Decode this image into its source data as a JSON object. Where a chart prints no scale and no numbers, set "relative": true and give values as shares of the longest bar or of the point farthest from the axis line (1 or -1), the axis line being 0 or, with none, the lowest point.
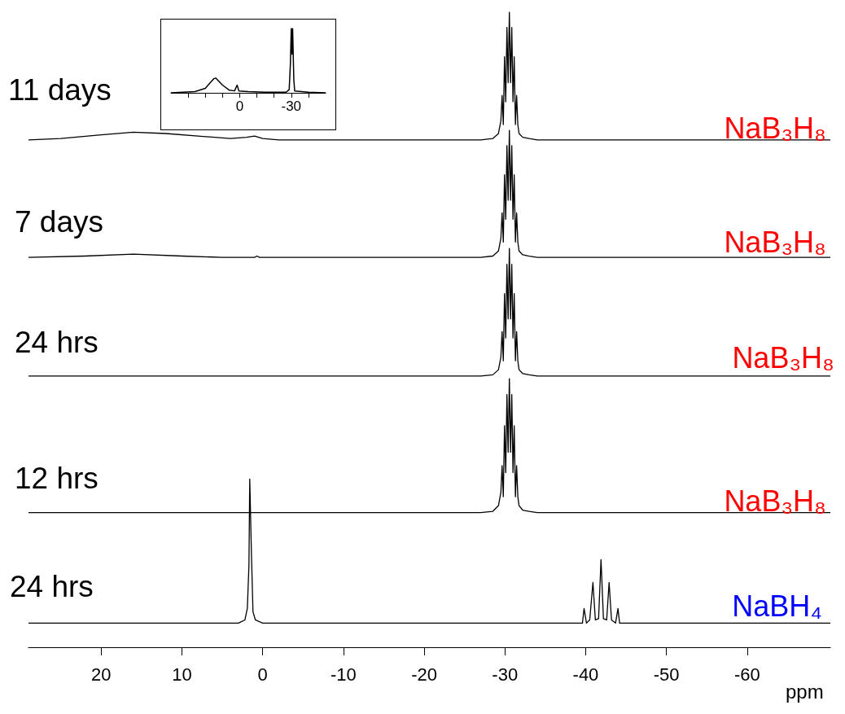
{
  "chart_data": [
    {
      "type": "line",
      "relative": true,
      "marker": "none",
      "tick_labels": "x",
      "xlim": [
        40,
        -50
      ],
      "xticks": [
        {
          "value": 30,
          "label": null
        },
        {
          "value": 20,
          "label": null
        },
        {
          "value": 10,
          "label": null
        },
        0,
        {
          "value": -10,
          "label": null
        },
        {
          "value": -20,
          "label": null
        },
        -30,
        {
          "value": -40,
          "label": null
        }
      ],
      "series": [
        {
          "color": "#000000",
          "x": [
            40,
            33,
            26,
            20,
            15,
            14,
            10,
            6,
            3,
            1.5,
            0.5,
            -5,
            -15,
            -27,
            -28.8,
            -29.5,
            -30.0,
            -30.4,
            -30.8,
            -31.5,
            -32,
            -40,
            -50
          ],
          "values": [
            0,
            0.01,
            0.02,
            0.07,
            0.22,
            0.23,
            0.12,
            0.04,
            0.03,
            0.12,
            0.03,
            0.02,
            0.01,
            0.01,
            0.05,
            0.45,
            1,
            0.6,
            1,
            0.2,
            0.03,
            0.01,
            0
          ]
        }
      ]
    },
    {
      "type": "line",
      "relative": true,
      "marker": "none",
      "tick_labels": "x",
      "xlim": [
        29,
        -70.3
      ],
      "xticks": [
        20,
        10,
        0,
        -10,
        -20,
        -30,
        -40,
        -50,
        -60
      ],
      "xlabel": "ppm",
      "annotations": [
        "NaB₃H₈",
        "NaB₃H₈",
        "NaB₃H₈",
        "NaB₃H₈",
        "NaBH₄"
      ],
      "series": [
        {
          "name": "11 days",
          "color": "#000000",
          "x": [
            29,
            25,
            20,
            16,
            12,
            8,
            4,
            2,
            1,
            0.5,
            0,
            -2,
            -10,
            -27,
            -28.5,
            -29.2,
            -29.5,
            -29.65,
            -29.8,
            -29.95,
            -30.1,
            -30.25,
            -30.4,
            -30.55,
            -30.7,
            -30.85,
            -31.0,
            -31.15,
            -31.3,
            -31.45,
            -31.6,
            -31.75,
            -32.2,
            -33,
            -34,
            -70.3
          ],
          "values": [
            0.799,
            0.801,
            0.807,
            0.811,
            0.809,
            0.805,
            0.801,
            0.803,
            0.805,
            0.803,
            0.801,
            0.799,
            0.799,
            0.799,
            0.801,
            0.809,
            0.829,
            0.869,
            0.823,
            0.93,
            0.859,
            0.976,
            0.889,
            1,
            0.889,
            0.976,
            0.859,
            0.93,
            0.823,
            0.869,
            0.823,
            0.809,
            0.803,
            0.801,
            0.799,
            0.799
          ]
        },
        {
          "name": "7 days",
          "color": "#000000",
          "x": [
            29,
            22,
            16,
            10,
            5,
            1,
            0.7,
            0.4,
            -10,
            -27,
            -28.5,
            -29.2,
            -29.5,
            -29.65,
            -29.8,
            -29.95,
            -30.1,
            -30.25,
            -30.4,
            -30.55,
            -30.7,
            -30.85,
            -31.0,
            -31.15,
            -31.3,
            -31.45,
            -31.6,
            -31.75,
            -32.2,
            -33,
            -34,
            -70.3
          ],
          "values": [
            0.614,
            0.616,
            0.619,
            0.616,
            0.614,
            0.614,
            0.616,
            0.614,
            0.614,
            0.614,
            0.616,
            0.624,
            0.644,
            0.684,
            0.638,
            0.744,
            0.674,
            0.79,
            0.704,
            0.814,
            0.704,
            0.79,
            0.674,
            0.744,
            0.638,
            0.684,
            0.638,
            0.624,
            0.618,
            0.616,
            0.614,
            0.614
          ]
        },
        {
          "name": "24 hrs",
          "color": "#000000",
          "x": [
            29,
            -10,
            -27,
            -28.5,
            -29.2,
            -29.5,
            -29.65,
            -29.8,
            -29.95,
            -30.1,
            -30.25,
            -30.4,
            -30.55,
            -30.7,
            -30.85,
            -31.0,
            -31.15,
            -31.3,
            -31.45,
            -31.6,
            -31.75,
            -32.2,
            -33,
            -34,
            -70.3
          ],
          "values": [
            0.427,
            0.427,
            0.427,
            0.429,
            0.437,
            0.457,
            0.497,
            0.451,
            0.557,
            0.487,
            0.603,
            0.517,
            0.628,
            0.517,
            0.603,
            0.487,
            0.557,
            0.451,
            0.497,
            0.451,
            0.437,
            0.431,
            0.429,
            0.427,
            0.427
          ]
        },
        {
          "name": "12 hrs",
          "color": "#000000",
          "x": [
            29,
            -10,
            -27,
            -28.5,
            -29.2,
            -29.5,
            -29.65,
            -29.8,
            -29.95,
            -30.1,
            -30.25,
            -30.4,
            -30.55,
            -30.7,
            -30.85,
            -31.0,
            -31.15,
            -31.3,
            -31.45,
            -31.6,
            -31.75,
            -32.2,
            -33,
            -34,
            -70.3
          ],
          "values": [
            0.212,
            0.212,
            0.212,
            0.214,
            0.223,
            0.244,
            0.286,
            0.237,
            0.349,
            0.275,
            0.398,
            0.307,
            0.423,
            0.307,
            0.398,
            0.275,
            0.349,
            0.237,
            0.286,
            0.237,
            0.223,
            0.216,
            0.214,
            0.212,
            0.212
          ]
        },
        {
          "name": "24 hrs",
          "color": "#000000",
          "x": [
            29,
            3,
            2.2,
            1.9,
            1.7,
            1.6,
            1.4,
            1.2,
            0.9,
            0,
            -38,
            -39.6,
            -39.8,
            -40.1,
            -40.5,
            -40.9,
            -41.2,
            -41.6,
            -41.9,
            -42.2,
            -42.6,
            -42.9,
            -43.2,
            -43.7,
            -44.0,
            -44.2,
            -70.3
          ],
          "values": [
            0.038,
            0.038,
            0.043,
            0.061,
            0.129,
            0.265,
            0.152,
            0.056,
            0.043,
            0.038,
            0.038,
            0.038,
            0.061,
            0.038,
            0.043,
            0.102,
            0.043,
            0.045,
            0.138,
            0.045,
            0.043,
            0.102,
            0.043,
            0.038,
            0.061,
            0.038,
            0.038
          ]
        }
      ]
    }
  ]
}
